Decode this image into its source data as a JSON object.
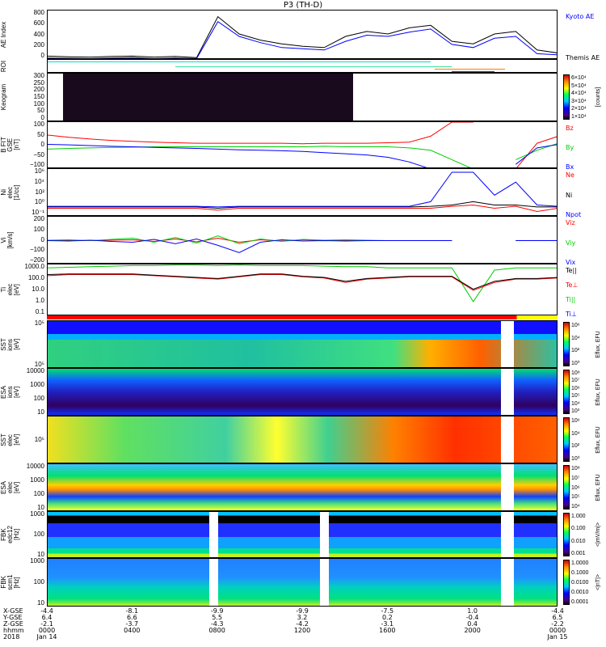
{
  "title": "P3 (TH-D)",
  "panels": {
    "ae": {
      "ylabel": "AE Index",
      "ticks": [
        "800",
        "600",
        "400",
        "200",
        "0"
      ],
      "legend": [
        "Kyoto AE",
        "Themis AE"
      ]
    },
    "roi": {
      "ylabel": "ROI"
    },
    "keogram": {
      "ylabel": "Keogram",
      "ticks": [
        "300",
        "250",
        "200",
        "150",
        "100",
        "50",
        "0"
      ],
      "cb_ticks": [
        "6×10⁴",
        "5×10⁴",
        "4×10⁴",
        "3×10⁴",
        "2×10⁴",
        "1×10⁴"
      ],
      "cb_unit": "[counts]"
    },
    "bfit": {
      "ylabel": "B FIT\nGSE\n[nT]",
      "ticks": [
        "100",
        "50",
        "0",
        "−50",
        "−100"
      ],
      "legend": [
        "Bz",
        "By",
        "Bx"
      ]
    },
    "ni": {
      "ylabel": "Ni\nelec\n[1/cc]",
      "ticks": [
        "10⁶",
        "10⁴",
        "10²",
        "10⁰",
        "10⁻¹"
      ],
      "legend": [
        "Ne",
        "Ni",
        "Npot"
      ]
    },
    "vi": {
      "ylabel": "Vi\n[km/s]",
      "ticks": [
        "200",
        "100",
        "0",
        "−100",
        "−200"
      ],
      "legend": [
        "Viz",
        "Viy",
        "Vix"
      ]
    },
    "ti": {
      "ylabel": "Ti\nelec\n[eV]",
      "ticks": [
        "1000.0",
        "100.0",
        "10.0",
        "1.0",
        "0.1"
      ],
      "legend": [
        "Te||",
        "Te⊥",
        "Ti||",
        "Ti⊥"
      ]
    },
    "sst_i": {
      "ylabel": "SST\nions\n[eV]",
      "ticks": [
        "10⁵",
        "10⁵"
      ],
      "cb_ticks": [
        "10⁶",
        "10⁴",
        "10²",
        "10⁰"
      ],
      "cb_unit": "Eflux, EFU"
    },
    "esa_i": {
      "ylabel": "ESA\nions\n[eV]",
      "ticks": [
        "10000",
        "1000",
        "100",
        "10"
      ],
      "cb_ticks": [
        "10⁸",
        "10⁷",
        "10⁶",
        "10⁵",
        "10⁴",
        "10³"
      ],
      "cb_unit": "Eflux, EFU"
    },
    "sst_e": {
      "ylabel": "SST\nelec\n[eV]",
      "ticks": [
        "10⁵"
      ],
      "cb_ticks": [
        "10⁶",
        "10⁴",
        "10²",
        "10⁰"
      ],
      "cb_unit": "Eflux, EFU"
    },
    "esa_e": {
      "ylabel": "ESA\nelec\n[eV]",
      "ticks": [
        "10000",
        "1000",
        "100",
        "10"
      ],
      "cb_ticks": [
        "10⁸",
        "10⁷",
        "10⁶",
        "10⁵",
        "10⁴"
      ],
      "cb_unit": "Eflux, EFU"
    },
    "fbk_e": {
      "ylabel": "FBK\nedc12\n[Hz]",
      "ticks": [
        "1000",
        "100",
        "10"
      ],
      "cb_ticks": [
        "1.000",
        "0.100",
        "0.010",
        "0.001"
      ],
      "cb_unit": "<|mV/m|>"
    },
    "fbk_b": {
      "ylabel": "FBK\nscm1\n[Hz]",
      "ticks": [
        "1000",
        "100",
        "10"
      ],
      "cb_ticks": [
        "1.0000",
        "0.1000",
        "0.0100",
        "0.0010",
        "0.0001"
      ],
      "cb_unit": "<|nT|>"
    }
  },
  "xaxis": {
    "row_labels": [
      "X-GSE",
      "Y-GSE",
      "Z-GSE",
      "hhmm",
      "2018"
    ],
    "columns": [
      {
        "x": "-4.4",
        "y": "6.4",
        "z": "-2.1",
        "t": "0000",
        "d": "Jan 14"
      },
      {
        "x": "-8.1",
        "y": "6.6",
        "z": "-3.7",
        "t": "0400",
        "d": ""
      },
      {
        "x": "-9.9",
        "y": "5.5",
        "z": "-4.3",
        "t": "0800",
        "d": ""
      },
      {
        "x": "-9.9",
        "y": "3.2",
        "z": "-4.2",
        "t": "1200",
        "d": ""
      },
      {
        "x": "-7.5",
        "y": "0.2",
        "z": "-3.1",
        "t": "1600",
        "d": ""
      },
      {
        "x": "1.0",
        "y": "-0.4",
        "z": "0.4",
        "t": "2000",
        "d": ""
      },
      {
        "x": "-4.4",
        "y": "6.5",
        "z": "-2.2",
        "t": "0000",
        "d": "Jan 15"
      }
    ]
  },
  "chart_data": {
    "type": "line",
    "x_hours": [
      0,
      1,
      2,
      3,
      4,
      5,
      6,
      7,
      8,
      9,
      10,
      11,
      12,
      13,
      14,
      15,
      16,
      17,
      18,
      19,
      20,
      21,
      22,
      23,
      24
    ],
    "series": [
      {
        "panel": "ae",
        "name": "Themis AE",
        "color": "#000000",
        "ylim": [
          0,
          800
        ],
        "values": [
          60,
          50,
          45,
          55,
          60,
          45,
          55,
          35,
          700,
          420,
          320,
          260,
          220,
          200,
          380,
          460,
          420,
          520,
          560,
          300,
          260,
          420,
          460,
          160,
          110
        ]
      },
      {
        "panel": "ae",
        "name": "Kyoto AE",
        "color": "#0000ff",
        "ylim": [
          0,
          800
        ],
        "values": [
          30,
          25,
          20,
          30,
          35,
          20,
          30,
          20,
          620,
          380,
          280,
          200,
          180,
          160,
          300,
          400,
          380,
          450,
          500,
          250,
          200,
          350,
          380,
          100,
          80
        ]
      },
      {
        "panel": "bfit",
        "name": "Bz",
        "color": "#ff0000",
        "ylim": [
          -100,
          100
        ],
        "values": [
          45,
          35,
          28,
          22,
          18,
          15,
          12,
          10,
          10,
          10,
          10,
          10,
          8,
          10,
          10,
          10,
          12,
          15,
          40,
          100,
          100,
          null,
          -100,
          10,
          40
        ]
      },
      {
        "panel": "bfit",
        "name": "By",
        "color": "#00cc00",
        "ylim": [
          -100,
          100
        ],
        "values": [
          -15,
          -12,
          -10,
          -8,
          -7,
          -5,
          -5,
          -5,
          -5,
          -5,
          -5,
          -5,
          -5,
          -3,
          -5,
          -5,
          -5,
          -10,
          -20,
          -60,
          -100,
          null,
          -60,
          -20,
          10
        ]
      },
      {
        "panel": "bfit",
        "name": "Bx",
        "color": "#0000ff",
        "ylim": [
          -100,
          100
        ],
        "values": [
          5,
          3,
          0,
          -3,
          -5,
          -8,
          -10,
          -12,
          -15,
          -18,
          -20,
          -22,
          -25,
          -30,
          -35,
          -40,
          -50,
          -70,
          -100,
          -100,
          -100,
          null,
          -80,
          -10,
          5
        ]
      },
      {
        "panel": "ni",
        "name": "Ne",
        "color": "#ff0000",
        "ylim_log": [
          -1.3,
          6
        ],
        "values": [
          0,
          0,
          0,
          0,
          0,
          0,
          0,
          0,
          -0.3,
          0,
          0,
          0,
          0,
          0,
          0,
          0,
          0,
          0,
          0,
          0.3,
          0.5,
          0,
          0.3,
          -0.5,
          0
        ]
      },
      {
        "panel": "ni",
        "name": "Ni",
        "color": "#000000",
        "ylim_log": [
          -1.3,
          6
        ],
        "values": [
          0.2,
          0.2,
          0.2,
          0.2,
          0.2,
          0.2,
          0.2,
          0.2,
          0,
          0.2,
          0.2,
          0.2,
          0.2,
          0.2,
          0.2,
          0.2,
          0.2,
          0.2,
          0.3,
          0.5,
          1,
          0.5,
          0.5,
          0.2,
          0.2
        ]
      },
      {
        "panel": "ni",
        "name": "Npot",
        "color": "#0000ff",
        "ylim_log": [
          -1.3,
          6
        ],
        "values": [
          0.3,
          0.3,
          0.3,
          0.3,
          0.3,
          0.3,
          0.3,
          0.3,
          0.2,
          0.3,
          0.3,
          0.3,
          0.3,
          0.3,
          0.3,
          0.3,
          0.3,
          0.3,
          1,
          5.5,
          5.5,
          2,
          4,
          0.5,
          0.3
        ]
      },
      {
        "panel": "vi",
        "name": "Viz",
        "color": "#ff0000",
        "ylim": [
          -300,
          300
        ],
        "values": [
          0,
          0,
          0,
          5,
          10,
          -10,
          20,
          -15,
          30,
          -20,
          10,
          -5,
          10,
          0,
          5,
          0,
          0,
          0,
          0,
          0,
          null,
          null,
          0,
          0,
          0
        ]
      },
      {
        "panel": "vi",
        "name": "Viy",
        "color": "#00cc00",
        "ylim": [
          -300,
          300
        ],
        "values": [
          5,
          10,
          0,
          15,
          30,
          -20,
          40,
          -30,
          60,
          -40,
          20,
          -10,
          15,
          5,
          10,
          5,
          0,
          0,
          0,
          0,
          null,
          null,
          0,
          0,
          0
        ]
      },
      {
        "panel": "vi",
        "name": "Vix",
        "color": "#0000ff",
        "ylim": [
          -300,
          300
        ],
        "values": [
          0,
          -5,
          5,
          -10,
          -20,
          15,
          -40,
          20,
          -60,
          -150,
          -20,
          10,
          -5,
          0,
          -5,
          0,
          0,
          0,
          0,
          0,
          null,
          null,
          0,
          0,
          0
        ]
      },
      {
        "panel": "ti",
        "name": "Ti||",
        "color": "#00cc00",
        "ylim_log": [
          -1.3,
          3.3
        ],
        "values": [
          3,
          3.05,
          3.1,
          3.15,
          3.2,
          3.2,
          3.25,
          3.25,
          3.2,
          3.25,
          3.2,
          3.2,
          3.2,
          3.15,
          3.1,
          3.1,
          3.0,
          3.0,
          3.0,
          3.0,
          0,
          2.8,
          3.0,
          3.0,
          3.0
        ]
      },
      {
        "panel": "ti",
        "name": "Te⊥",
        "color": "#ff0000",
        "ylim_log": [
          -1.3,
          3.3
        ],
        "values": [
          2.3,
          2.4,
          2.4,
          2.4,
          2.4,
          2.3,
          2.2,
          2.1,
          2.0,
          2.2,
          2.4,
          2.4,
          2.2,
          2.1,
          1.7,
          2.0,
          2.1,
          2.2,
          2.2,
          2.2,
          1.0,
          1.7,
          2.0,
          2.0,
          2.1
        ]
      },
      {
        "panel": "ti",
        "name": "Te||",
        "color": "#000000",
        "ylim_log": [
          -1.3,
          3.3
        ],
        "values": [
          2.4,
          2.45,
          2.45,
          2.45,
          2.45,
          2.35,
          2.25,
          2.15,
          2.05,
          2.25,
          2.45,
          2.45,
          2.25,
          2.15,
          1.8,
          2.05,
          2.15,
          2.25,
          2.25,
          2.25,
          1.1,
          1.8,
          2.05,
          2.05,
          2.15
        ]
      }
    ]
  }
}
